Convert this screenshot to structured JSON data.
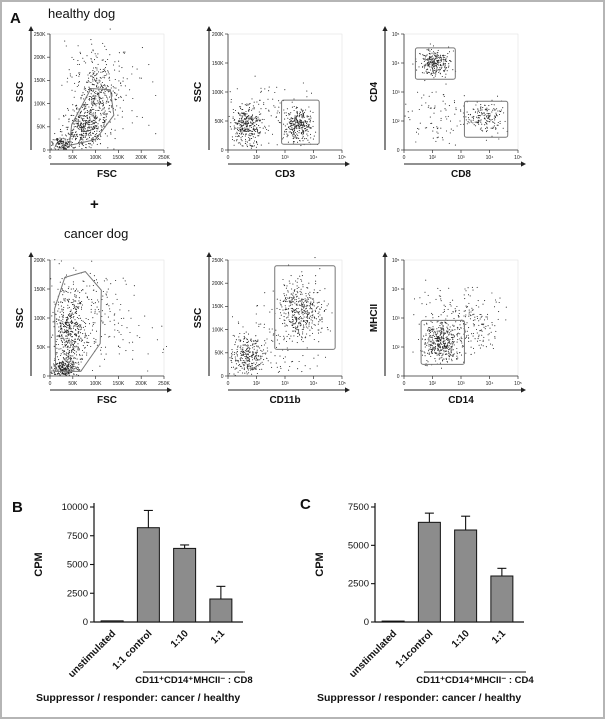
{
  "colors": {
    "bars": "#8c8c8c",
    "gate": "#777777",
    "dots": "#000000",
    "axis": "#222222"
  },
  "panel_a": {
    "label": "A",
    "row1_title": "healthy dog",
    "plus": "+",
    "row2_title": "cancer dog"
  },
  "chart_data": [
    {
      "type": "scatter-flow",
      "group": "healthy dog",
      "xlabel": "FSC",
      "ylabel": "SSC",
      "xticks": [
        "0",
        "50K",
        "100K",
        "150K",
        "200K",
        "250K"
      ],
      "yticks": [
        "0",
        "50K",
        "100K",
        "150K",
        "200K",
        "250K"
      ],
      "clusters": [
        {
          "cx": 0.3,
          "cy": 0.2,
          "sx": 0.09,
          "sy": 0.1,
          "n": 450
        },
        {
          "cx": 0.44,
          "cy": 0.44,
          "sx": 0.08,
          "sy": 0.11,
          "n": 220
        },
        {
          "cx": 0.42,
          "cy": 0.68,
          "sx": 0.13,
          "sy": 0.14,
          "n": 120
        },
        {
          "cx": 0.1,
          "cy": 0.05,
          "sx": 0.05,
          "sy": 0.04,
          "n": 160
        },
        {
          "cx": 0.5,
          "cy": 0.4,
          "sx": 0.25,
          "sy": 0.25,
          "n": 60
        }
      ],
      "gates": [
        {
          "shape": "polygon",
          "points": [
            [
              0.17,
              0.04
            ],
            [
              0.4,
              0.09
            ],
            [
              0.56,
              0.3
            ],
            [
              0.53,
              0.52
            ],
            [
              0.36,
              0.53
            ],
            [
              0.19,
              0.22
            ]
          ]
        }
      ]
    },
    {
      "type": "scatter-flow",
      "group": "healthy dog",
      "xlabel": "CD3",
      "ylabel": "SSC",
      "xticks": [
        "0",
        "10²",
        "10³",
        "10⁴",
        "10⁵"
      ],
      "yticks": [
        "0",
        "50K",
        "100K",
        "150K",
        "200K"
      ],
      "clusters": [
        {
          "cx": 0.16,
          "cy": 0.21,
          "sx": 0.07,
          "sy": 0.09,
          "n": 330
        },
        {
          "cx": 0.62,
          "cy": 0.21,
          "sx": 0.06,
          "sy": 0.08,
          "n": 300
        },
        {
          "cx": 0.35,
          "cy": 0.28,
          "sx": 0.18,
          "sy": 0.14,
          "n": 90
        }
      ],
      "gates": [
        {
          "shape": "rect",
          "x": 0.47,
          "y": 0.05,
          "w": 0.33,
          "h": 0.38
        }
      ]
    },
    {
      "type": "scatter-flow",
      "group": "healthy dog",
      "xlabel": "CD8",
      "ylabel": "CD4",
      "xticks": [
        "0",
        "10²",
        "10³",
        "10⁴",
        "10⁵"
      ],
      "yticks": [
        "0",
        "10²",
        "10³",
        "10⁴",
        "10⁵"
      ],
      "clusters": [
        {
          "cx": 0.27,
          "cy": 0.75,
          "sx": 0.07,
          "sy": 0.055,
          "n": 260
        },
        {
          "cx": 0.71,
          "cy": 0.27,
          "sx": 0.08,
          "sy": 0.07,
          "n": 170
        },
        {
          "cx": 0.3,
          "cy": 0.25,
          "sx": 0.16,
          "sy": 0.13,
          "n": 90
        }
      ],
      "gates": [
        {
          "shape": "rect",
          "x": 0.1,
          "y": 0.61,
          "w": 0.35,
          "h": 0.27
        },
        {
          "shape": "rect",
          "x": 0.53,
          "y": 0.11,
          "w": 0.38,
          "h": 0.31
        }
      ]
    },
    {
      "type": "scatter-flow",
      "group": "cancer dog",
      "xlabel": "FSC",
      "ylabel": "SSC",
      "xticks": [
        "0",
        "50K",
        "100K",
        "150K",
        "200K",
        "250K"
      ],
      "yticks": [
        "0",
        "50K",
        "100K",
        "150K",
        "200K"
      ],
      "clusters": [
        {
          "cx": 0.16,
          "cy": 0.38,
          "sx": 0.07,
          "sy": 0.2,
          "n": 520
        },
        {
          "cx": 0.12,
          "cy": 0.06,
          "sx": 0.06,
          "sy": 0.045,
          "n": 260
        },
        {
          "cx": 0.38,
          "cy": 0.55,
          "sx": 0.15,
          "sy": 0.2,
          "n": 150
        },
        {
          "cx": 0.6,
          "cy": 0.3,
          "sx": 0.25,
          "sy": 0.2,
          "n": 50
        }
      ],
      "gates": [
        {
          "shape": "polygon",
          "points": [
            [
              0.05,
              0.04
            ],
            [
              0.04,
              0.58
            ],
            [
              0.13,
              0.85
            ],
            [
              0.31,
              0.9
            ],
            [
              0.45,
              0.74
            ],
            [
              0.44,
              0.28
            ],
            [
              0.27,
              0.04
            ]
          ]
        }
      ]
    },
    {
      "type": "scatter-flow",
      "group": "cancer dog",
      "xlabel": "CD11b",
      "ylabel": "SSC",
      "xticks": [
        "0",
        "10²",
        "10³",
        "10⁴",
        "10⁵"
      ],
      "yticks": [
        "0",
        "50K",
        "100K",
        "150K",
        "200K",
        "250K"
      ],
      "clusters": [
        {
          "cx": 0.17,
          "cy": 0.16,
          "sx": 0.08,
          "sy": 0.09,
          "n": 300
        },
        {
          "cx": 0.64,
          "cy": 0.56,
          "sx": 0.1,
          "sy": 0.13,
          "n": 430
        },
        {
          "cx": 0.4,
          "cy": 0.3,
          "sx": 0.2,
          "sy": 0.18,
          "n": 110
        }
      ],
      "gates": [
        {
          "shape": "rect",
          "x": 0.41,
          "y": 0.23,
          "w": 0.53,
          "h": 0.72
        }
      ]
    },
    {
      "type": "scatter-flow",
      "group": "cancer dog",
      "xlabel": "CD14",
      "ylabel": "MHCII",
      "xticks": [
        "0",
        "10²",
        "10³",
        "10⁴",
        "10⁵"
      ],
      "yticks": [
        "0",
        "10²",
        "10³",
        "10⁴",
        "10⁵"
      ],
      "clusters": [
        {
          "cx": 0.33,
          "cy": 0.29,
          "sx": 0.085,
          "sy": 0.085,
          "n": 430
        },
        {
          "cx": 0.6,
          "cy": 0.44,
          "sx": 0.12,
          "sy": 0.11,
          "n": 150
        },
        {
          "cx": 0.45,
          "cy": 0.6,
          "sx": 0.2,
          "sy": 0.13,
          "n": 60
        }
      ],
      "gates": [
        {
          "shape": "rect",
          "x": 0.15,
          "y": 0.1,
          "w": 0.38,
          "h": 0.38
        }
      ]
    },
    {
      "type": "bar",
      "panel_label": "B",
      "ylabel": "CPM",
      "categories": [
        "unstimulated",
        "1:1 control",
        "1:10",
        "1:1"
      ],
      "values": [
        100,
        8200,
        6400,
        2000
      ],
      "errors_up": [
        0,
        1500,
        300,
        1100
      ],
      "ylim": [
        0,
        10000
      ],
      "yticks": [
        0,
        2500,
        5000,
        7500,
        10000
      ],
      "group_label": "CD11⁺CD14⁺MHCII⁻ : CD8",
      "footer_label": "Suppressor / responder:",
      "footer_value": "cancer / healthy"
    },
    {
      "type": "bar",
      "panel_label": "C",
      "ylabel": "CPM",
      "categories": [
        "unstimulated",
        "1:1control",
        "1:10",
        "1:1"
      ],
      "values": [
        60,
        6500,
        6000,
        3000
      ],
      "errors_up": [
        0,
        600,
        900,
        500
      ],
      "ylim": [
        0,
        7500
      ],
      "yticks": [
        0,
        2500,
        5000,
        7500
      ],
      "group_label": "CD11⁺CD14⁺MHCII⁻ : CD4",
      "footer_label": "Suppressor / responder:",
      "footer_value": "cancer / healthy"
    }
  ]
}
